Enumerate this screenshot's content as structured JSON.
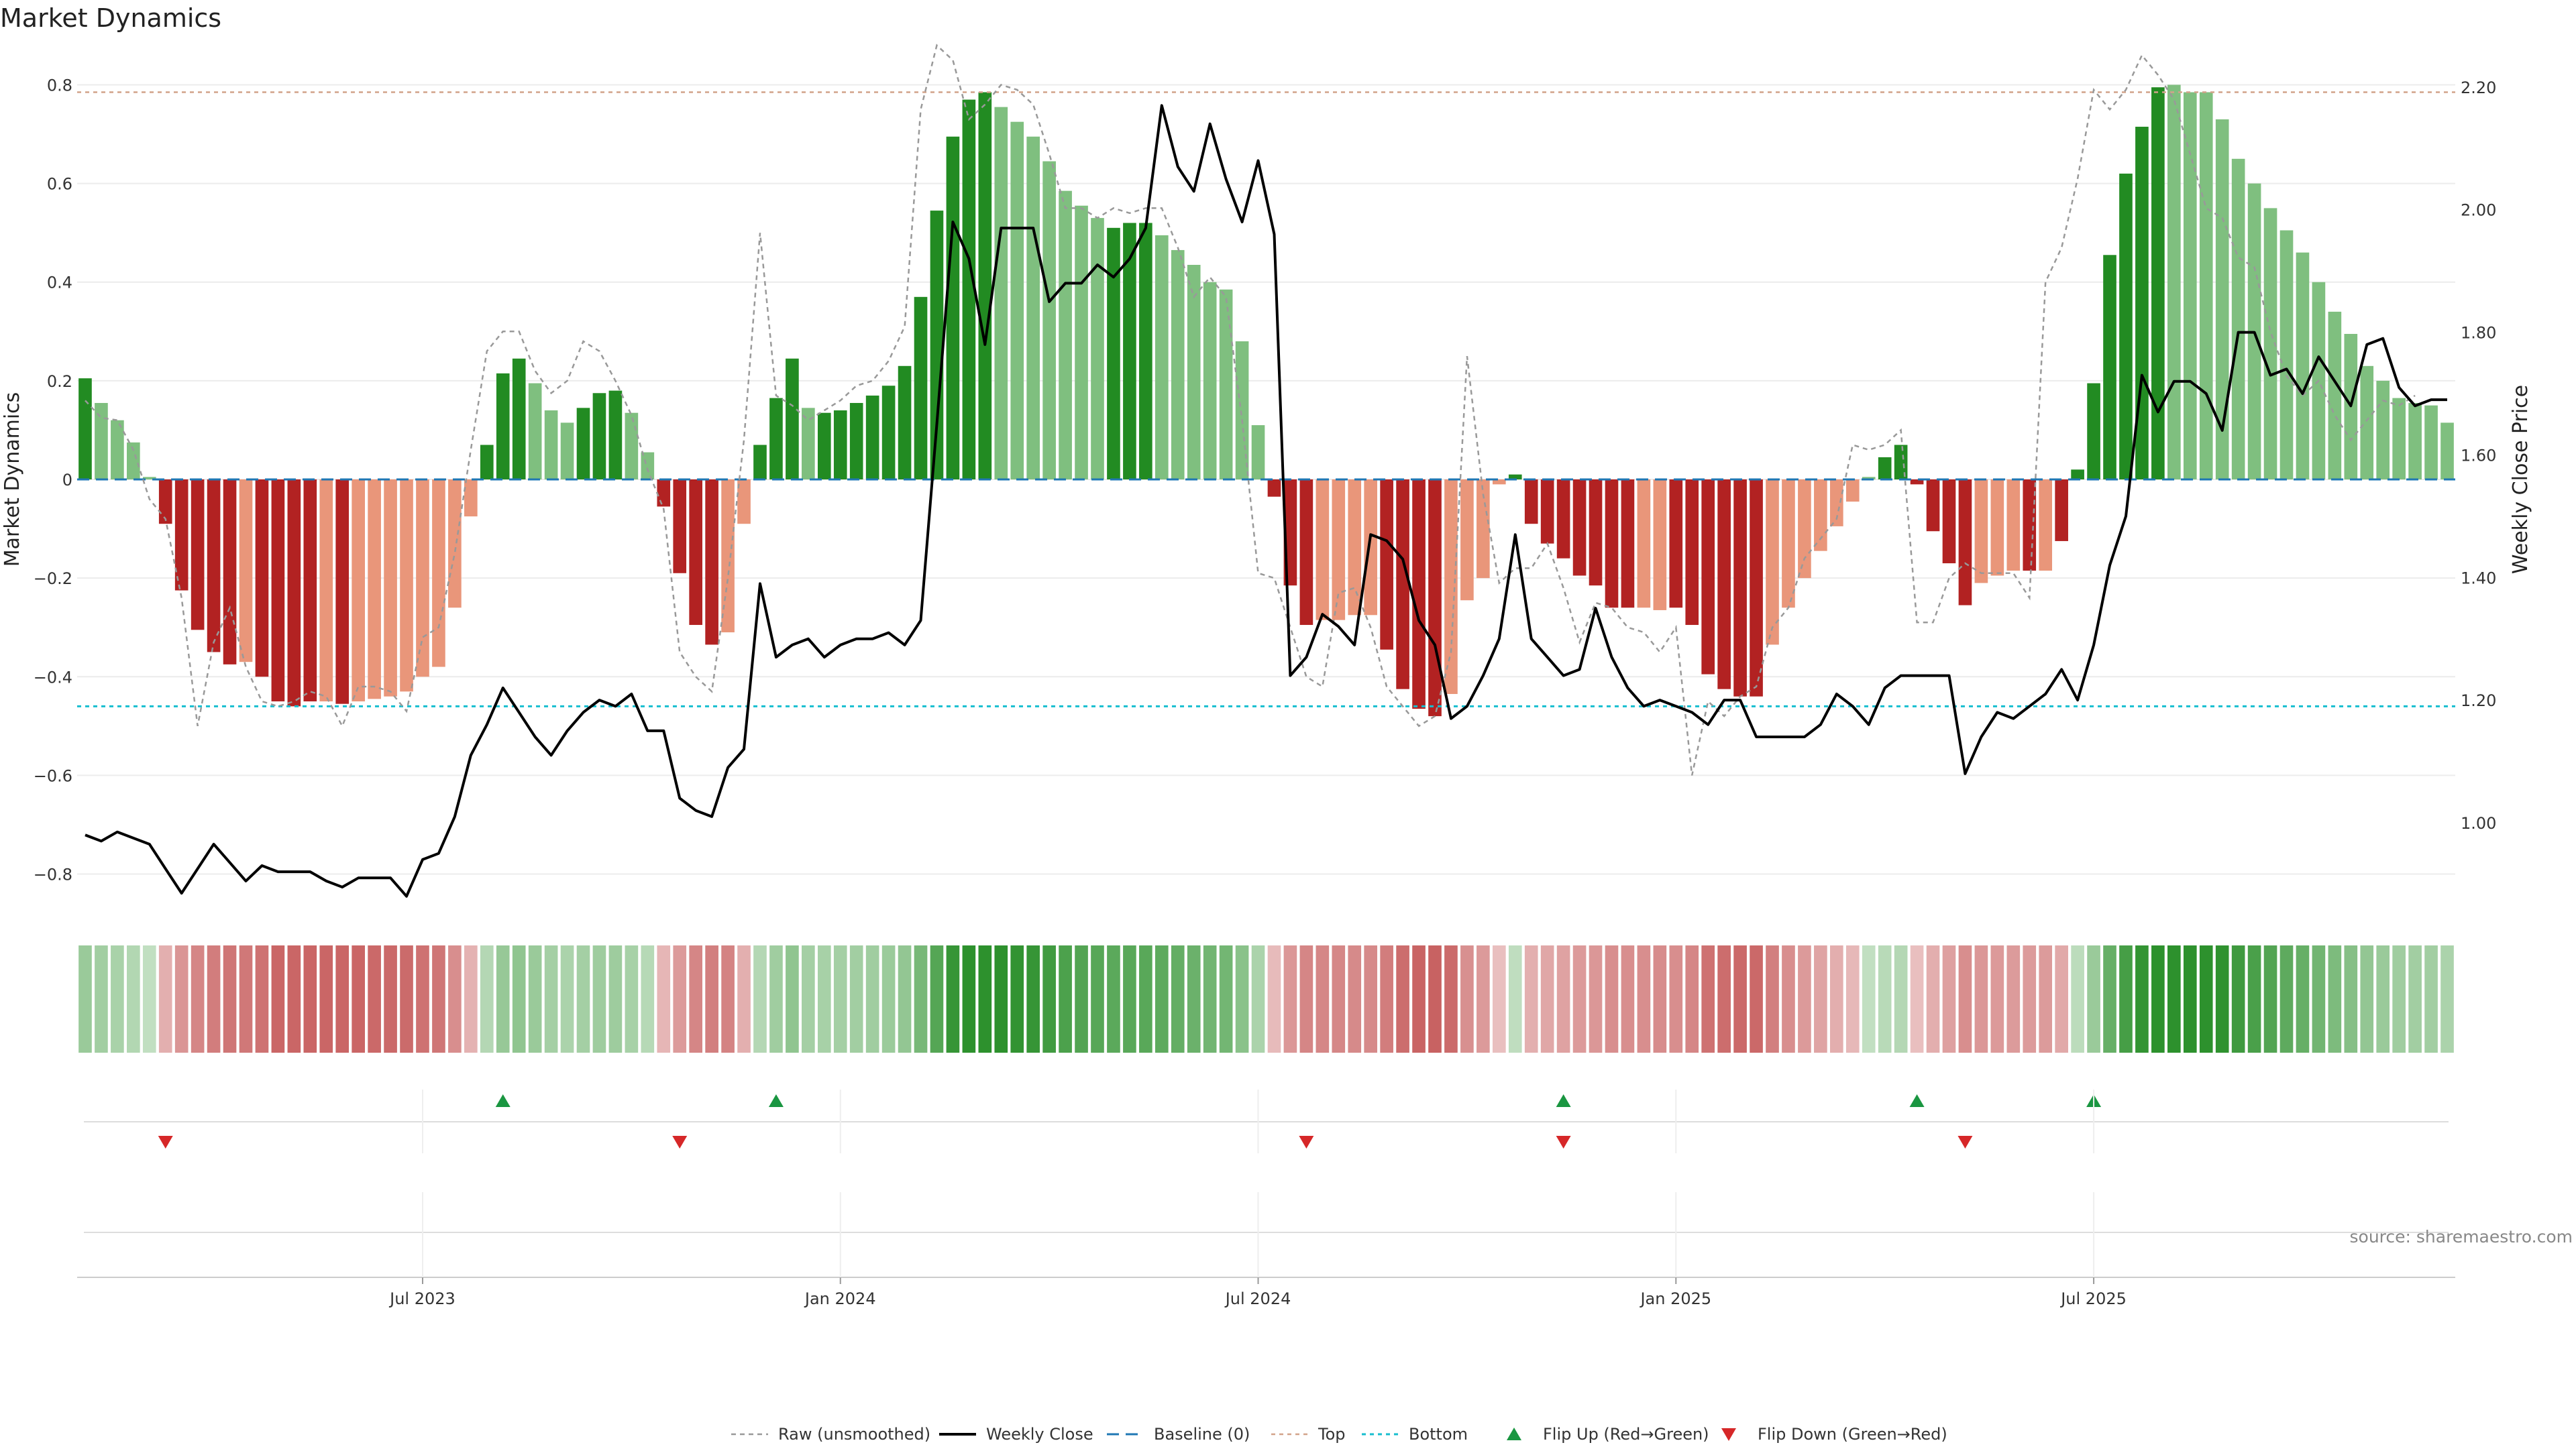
{
  "chart_data": {
    "type": "bar",
    "title": "Market Dynamics",
    "ylabel": "Market Dynamics",
    "y2label": "Weekly Close Price",
    "ylim": [
      -0.87,
      0.87
    ],
    "y2lim": [
      0.86,
      2.26
    ],
    "yticks": [
      0.8,
      0.6,
      0.4,
      0.2,
      0,
      -0.2,
      -0.4,
      -0.6,
      -0.8
    ],
    "yticklabels": [
      "0.8",
      "0.6",
      "0.4",
      "0.2",
      "0",
      "−0.2",
      "−0.4",
      "−0.6",
      "−0.8"
    ],
    "y2ticks": [
      2.2,
      2.0,
      1.8,
      1.6,
      1.4,
      1.2,
      1.0
    ],
    "y2ticklabels": [
      "2.20",
      "2.00",
      "1.80",
      "1.60",
      "1.40",
      "1.20",
      "1.00"
    ],
    "xticks": [
      {
        "index": 21,
        "label": "Jul 2023"
      },
      {
        "index": 47,
        "label": "Jan 2024"
      },
      {
        "index": 73,
        "label": "Jul 2024"
      },
      {
        "index": 99,
        "label": "Jan 2025"
      },
      {
        "index": 125,
        "label": "Jul 2025"
      }
    ],
    "top_level": 0.785,
    "bottom_level": -0.46,
    "baseline": 0,
    "source": "source: sharemaestro.com",
    "colors": {
      "up_strong": "#228b22",
      "up_weak": "#7fbf7f",
      "down_strong": "#b22222",
      "down_weak": "#e9967a",
      "close_line": "#000000",
      "raw_line": "#999999",
      "baseline": "#1f77b4",
      "top": "#d2a38a",
      "bottom": "#17becf",
      "flip_up": "#1a9641",
      "flip_down": "#d62728"
    },
    "legend": [
      {
        "key": "raw",
        "label": "Raw (unsmoothed)"
      },
      {
        "key": "close",
        "label": "Weekly Close"
      },
      {
        "key": "baseline",
        "label": "Baseline (0)"
      },
      {
        "key": "top",
        "label": "Top"
      },
      {
        "key": "bottom",
        "label": "Bottom"
      },
      {
        "key": "flip_up",
        "label": "Flip Up (Red→Green)"
      },
      {
        "key": "flip_down",
        "label": "Flip Down (Green→Red)"
      }
    ],
    "values": [
      0.205,
      0.155,
      0.12,
      0.075,
      0.005,
      -0.09,
      -0.225,
      -0.305,
      -0.35,
      -0.375,
      -0.37,
      -0.4,
      -0.45,
      -0.46,
      -0.45,
      -0.45,
      -0.455,
      -0.45,
      -0.445,
      -0.44,
      -0.43,
      -0.4,
      -0.38,
      -0.26,
      -0.075,
      0.07,
      0.215,
      0.245,
      0.195,
      0.14,
      0.115,
      0.145,
      0.175,
      0.18,
      0.135,
      0.055,
      -0.055,
      -0.19,
      -0.295,
      -0.335,
      -0.31,
      -0.09,
      0.07,
      0.165,
      0.245,
      0.145,
      0.135,
      0.14,
      0.155,
      0.17,
      0.19,
      0.23,
      0.37,
      0.545,
      0.695,
      0.77,
      0.785,
      0.755,
      0.725,
      0.695,
      0.645,
      0.585,
      0.555,
      0.53,
      0.51,
      0.52,
      0.52,
      0.495,
      0.465,
      0.435,
      0.4,
      0.385,
      0.28,
      0.11,
      -0.035,
      -0.215,
      -0.295,
      -0.285,
      -0.285,
      -0.275,
      -0.275,
      -0.345,
      -0.425,
      -0.465,
      -0.48,
      -0.435,
      -0.245,
      -0.2,
      -0.01,
      0.01,
      -0.09,
      -0.13,
      -0.16,
      -0.195,
      -0.215,
      -0.26,
      -0.26,
      -0.26,
      -0.265,
      -0.26,
      -0.295,
      -0.395,
      -0.425,
      -0.44,
      -0.44,
      -0.335,
      -0.26,
      -0.2,
      -0.145,
      -0.095,
      -0.045,
      0.005,
      0.045,
      0.07,
      -0.01,
      -0.105,
      -0.17,
      -0.255,
      -0.21,
      -0.195,
      -0.185,
      -0.185,
      -0.185,
      -0.125,
      0.02,
      0.195,
      0.455,
      0.62,
      0.715,
      0.795,
      0.8,
      0.785,
      0.785,
      0.73,
      0.65,
      0.6,
      0.55,
      0.505,
      0.46,
      0.4,
      0.34,
      0.295,
      0.23,
      0.2,
      0.165,
      0.155,
      0.15,
      0.115
    ],
    "strong": [
      1,
      0,
      0,
      0,
      0,
      1,
      1,
      1,
      1,
      1,
      0,
      1,
      1,
      1,
      1,
      0,
      1,
      0,
      0,
      0,
      0,
      0,
      0,
      0,
      0,
      1,
      1,
      1,
      0,
      0,
      0,
      1,
      1,
      1,
      0,
      0,
      1,
      1,
      1,
      1,
      0,
      0,
      1,
      1,
      1,
      0,
      1,
      1,
      1,
      1,
      1,
      1,
      1,
      1,
      1,
      1,
      1,
      0,
      0,
      0,
      0,
      0,
      0,
      0,
      1,
      1,
      1,
      0,
      0,
      0,
      0,
      0,
      0,
      0,
      1,
      1,
      1,
      0,
      0,
      0,
      0,
      1,
      1,
      1,
      1,
      0,
      0,
      0,
      0,
      1,
      1,
      1,
      1,
      1,
      1,
      1,
      1,
      0,
      0,
      1,
      1,
      1,
      1,
      1,
      1,
      0,
      0,
      0,
      0,
      0,
      0,
      0,
      1,
      1,
      1,
      1,
      1,
      1,
      0,
      0,
      0,
      1,
      0,
      1,
      1,
      1,
      1,
      1,
      1,
      1,
      0,
      0,
      0,
      0,
      0,
      0,
      0,
      0,
      0,
      0,
      0,
      0,
      0,
      0,
      0,
      0,
      0,
      0
    ],
    "flip_up_indices": [
      26,
      43,
      92,
      114,
      125
    ],
    "flip_down_indices": [
      5,
      37,
      76,
      92,
      117
    ],
    "close": [
      0.98,
      0.97,
      0.985,
      0.975,
      0.965,
      0.925,
      0.885,
      0.925,
      0.965,
      0.935,
      0.905,
      0.93,
      0.92,
      0.92,
      0.92,
      0.905,
      0.895,
      0.91,
      0.91,
      0.91,
      0.88,
      0.94,
      0.95,
      1.01,
      1.11,
      1.16,
      1.22,
      1.18,
      1.14,
      1.11,
      1.15,
      1.18,
      1.2,
      1.19,
      1.21,
      1.15,
      1.15,
      1.04,
      1.02,
      1.01,
      1.09,
      1.12,
      1.39,
      1.27,
      1.29,
      1.3,
      1.27,
      1.29,
      1.3,
      1.3,
      1.31,
      1.29,
      1.33,
      1.65,
      1.98,
      1.92,
      1.78,
      1.97,
      1.97,
      1.97,
      1.85,
      1.88,
      1.88,
      1.91,
      1.89,
      1.92,
      1.97,
      2.17,
      2.07,
      2.03,
      2.14,
      2.05,
      1.98,
      2.08,
      1.96,
      1.24,
      1.27,
      1.34,
      1.32,
      1.29,
      1.47,
      1.46,
      1.43,
      1.33,
      1.29,
      1.17,
      1.19,
      1.24,
      1.3,
      1.47,
      1.3,
      1.27,
      1.24,
      1.25,
      1.35,
      1.27,
      1.22,
      1.19,
      1.2,
      1.19,
      1.18,
      1.16,
      1.2,
      1.2,
      1.14,
      1.14,
      1.14,
      1.14,
      1.16,
      1.21,
      1.19,
      1.16,
      1.22,
      1.24,
      1.24,
      1.24,
      1.24,
      1.08,
      1.14,
      1.18,
      1.17,
      1.19,
      1.21,
      1.25,
      1.2,
      1.29,
      1.42,
      1.5,
      1.73,
      1.67,
      1.72,
      1.72,
      1.7,
      1.64,
      1.8,
      1.8,
      1.73,
      1.74,
      1.7,
      1.76,
      1.72,
      1.68,
      1.78,
      1.79,
      1.71,
      1.68,
      1.69,
      1.69
    ],
    "raw": [
      0.16,
      0.125,
      0.12,
      0.06,
      -0.04,
      -0.08,
      -0.24,
      -0.5,
      -0.33,
      -0.26,
      -0.38,
      -0.45,
      -0.46,
      -0.45,
      -0.43,
      -0.44,
      -0.5,
      -0.42,
      -0.42,
      -0.43,
      -0.47,
      -0.32,
      -0.3,
      -0.15,
      0.06,
      0.26,
      0.3,
      0.3,
      0.22,
      0.175,
      0.2,
      0.28,
      0.26,
      0.2,
      0.13,
      0.02,
      -0.06,
      -0.35,
      -0.4,
      -0.43,
      -0.2,
      0.08,
      0.5,
      0.17,
      0.15,
      0.12,
      0.14,
      0.16,
      0.19,
      0.2,
      0.24,
      0.31,
      0.75,
      0.88,
      0.85,
      0.73,
      0.76,
      0.8,
      0.79,
      0.76,
      0.66,
      0.55,
      0.55,
      0.53,
      0.55,
      0.54,
      0.55,
      0.55,
      0.47,
      0.37,
      0.41,
      0.37,
      0.12,
      -0.19,
      -0.2,
      -0.3,
      -0.4,
      -0.42,
      -0.23,
      -0.22,
      -0.3,
      -0.42,
      -0.46,
      -0.5,
      -0.48,
      -0.35,
      0.25,
      -0.03,
      -0.21,
      -0.18,
      -0.18,
      -0.13,
      -0.22,
      -0.33,
      -0.25,
      -0.26,
      -0.3,
      -0.31,
      -0.35,
      -0.3,
      -0.6,
      -0.45,
      -0.48,
      -0.44,
      -0.42,
      -0.3,
      -0.26,
      -0.16,
      -0.12,
      -0.08,
      0.07,
      0.06,
      0.07,
      0.1,
      -0.29,
      -0.29,
      -0.2,
      -0.17,
      -0.19,
      -0.19,
      -0.19,
      -0.24,
      0.4,
      0.47,
      0.61,
      0.79,
      0.75,
      0.79,
      0.86,
      0.82,
      0.77,
      0.66,
      0.55,
      0.53,
      0.45,
      0.43,
      0.3,
      0.21,
      0.17,
      0.2,
      0.13,
      0.08,
      0.12,
      0.16,
      0.15,
      0.17
    ]
  }
}
